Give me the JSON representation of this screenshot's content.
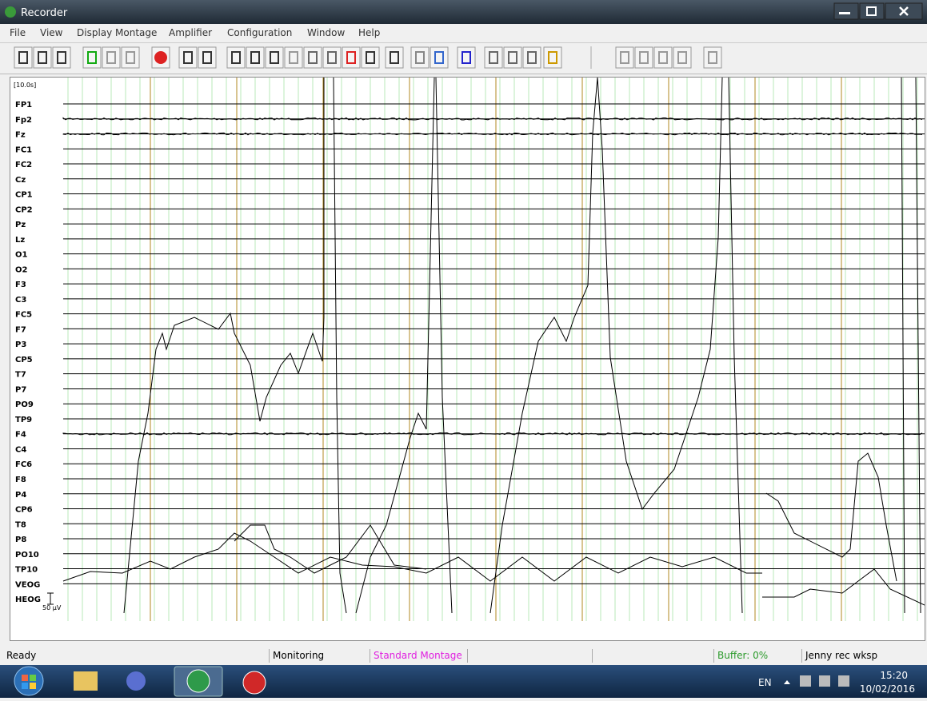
{
  "window": {
    "title": "Recorder"
  },
  "menu": [
    "File",
    "View",
    "Display Montage",
    "Amplifier",
    "Configuration",
    "Window",
    "Help"
  ],
  "chart": {
    "time_scale": "[10.0s]",
    "scale_label": "50 µV",
    "channels": [
      "FP1",
      "Fp2",
      "Fz",
      "FC1",
      "FC2",
      "Cz",
      "CP1",
      "CP2",
      "Pz",
      "Lz",
      "O1",
      "O2",
      "F3",
      "C3",
      "FC5",
      "F7",
      "P3",
      "CP5",
      "T7",
      "P7",
      "PO9",
      "TP9",
      "F4",
      "C4",
      "FC6",
      "F8",
      "P4",
      "CP6",
      "T8",
      "P8",
      "PO10",
      "TP10",
      "VEOG",
      "HEOG"
    ]
  },
  "status": {
    "state": "Ready",
    "mode": "Monitoring",
    "montage": "Standard Montage",
    "buffer": "Buffer: 0%",
    "workspace": "Jenny rec wksp"
  },
  "taskbar": {
    "language": "EN",
    "time": "15:20",
    "date": "10/02/2016"
  }
}
